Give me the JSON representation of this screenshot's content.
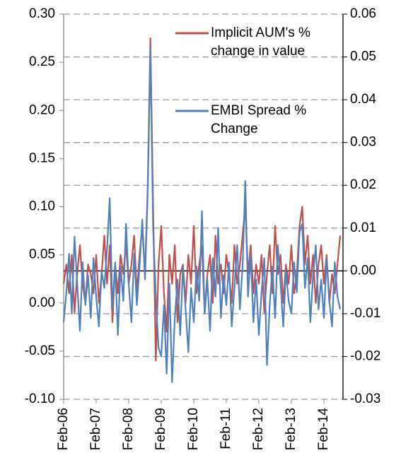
{
  "chart_data": {
    "type": "line",
    "categories": [
      "Feb-06",
      null,
      null,
      null,
      null,
      null,
      null,
      null,
      null,
      null,
      null,
      null,
      "Feb-07",
      null,
      null,
      null,
      null,
      null,
      null,
      null,
      null,
      null,
      null,
      null,
      "Feb-08",
      null,
      null,
      null,
      null,
      null,
      null,
      null,
      null,
      null,
      null,
      null,
      "Feb-09",
      null,
      null,
      null,
      null,
      null,
      null,
      null,
      null,
      null,
      null,
      null,
      "Feb-10",
      null,
      null,
      null,
      null,
      null,
      null,
      null,
      null,
      null,
      null,
      null,
      "Feb-11",
      null,
      null,
      null,
      null,
      null,
      null,
      null,
      null,
      null,
      null,
      null,
      "Feb-12",
      null,
      null,
      null,
      null,
      null,
      null,
      null,
      null,
      null,
      null,
      null,
      "Feb-13",
      null,
      null,
      null,
      null,
      null,
      null,
      null,
      null,
      null,
      null,
      null,
      "Feb-14",
      null,
      null,
      null,
      null,
      null,
      null
    ],
    "series": [
      {
        "name": "Implicit AUM's % change in value",
        "color": "#c0504d",
        "values": [
          0.02,
          0.04,
          0.01,
          0.05,
          -0.01,
          0.03,
          0.06,
          0.02,
          0.0,
          0.04,
          0.03,
          0.01,
          0.05,
          0.0,
          0.03,
          0.07,
          0.02,
          0.06,
          -0.02,
          0.04,
          0.01,
          0.05,
          0.03,
          0.06,
          0.02,
          0.04,
          0.07,
          0.01,
          0.05,
          0.08,
          0.03,
          0.12,
          0.275,
          0.1,
          -0.06,
          0.04,
          0.08,
          0.01,
          -0.03,
          0.05,
          0.02,
          0.06,
          -0.02,
          0.03,
          0.04,
          0.0,
          0.05,
          0.02,
          0.08,
          0.01,
          0.04,
          0.06,
          -0.01,
          0.03,
          0.05,
          0.0,
          0.07,
          0.02,
          0.04,
          0.01,
          0.05,
          0.03,
          0.0,
          0.06,
          0.02,
          0.04,
          0.07,
          0.1,
          0.03,
          0.06,
          0.01,
          0.04,
          0.02,
          0.05,
          -0.01,
          0.03,
          0.06,
          0.01,
          0.08,
          0.03,
          0.05,
          0.0,
          0.04,
          0.02,
          0.06,
          0.01,
          0.03,
          0.08,
          0.1,
          0.04,
          0.07,
          0.02,
          0.05,
          0.0,
          0.04,
          0.06,
          0.02,
          0.05,
          0.0,
          0.03,
          0.01,
          0.04,
          0.07
        ]
      },
      {
        "name": "EMBI Spread % Change",
        "color": "#4f81bd",
        "axis": "y2",
        "values": [
          -0.012,
          -0.005,
          0.004,
          -0.01,
          0.008,
          -0.003,
          -0.014,
          0.002,
          -0.008,
          -0.001,
          -0.011,
          0.003,
          -0.006,
          -0.013,
          0.0,
          -0.004,
          0.005,
          0.017,
          -0.009,
          0.002,
          -0.015,
          0.001,
          -0.007,
          0.011,
          -0.003,
          -0.012,
          0.004,
          -0.008,
          0.001,
          0.012,
          -0.002,
          0.018,
          0.052,
          0.01,
          -0.006,
          -0.018,
          -0.02,
          -0.008,
          -0.024,
          -0.003,
          -0.026,
          -0.011,
          -0.002,
          -0.015,
          0.001,
          -0.009,
          -0.019,
          -0.004,
          -0.012,
          0.001,
          -0.007,
          0.014,
          -0.01,
          -0.002,
          -0.014,
          0.003,
          -0.006,
          0.01,
          -0.011,
          -0.001,
          -0.008,
          0.002,
          -0.013,
          -0.004,
          0.006,
          -0.009,
          0.001,
          0.021,
          -0.006,
          0.004,
          -0.012,
          -0.002,
          -0.015,
          -0.005,
          0.003,
          -0.022,
          -0.008,
          0.001,
          -0.011,
          0.006,
          -0.003,
          -0.013,
          0.0,
          -0.007,
          -0.01,
          0.002,
          -0.005,
          0.009,
          0.011,
          -0.004,
          0.003,
          -0.012,
          -0.001,
          0.006,
          -0.009,
          -0.002,
          -0.011,
          0.003,
          -0.007,
          -0.013,
          0.002,
          -0.006,
          -0.009
        ]
      }
    ],
    "ylim": [
      -0.1,
      0.3
    ],
    "yticks": [
      {
        "value": 0.3,
        "label": "0.30"
      },
      0.25,
      {
        "value": 0.2,
        "label": "0.20"
      },
      0.15,
      {
        "value": 0.1,
        "label": "0.10"
      },
      0.05,
      {
        "value": 0,
        "label": "0.00"
      },
      -0.05,
      {
        "value": -0.1,
        "label": "-0.10"
      }
    ],
    "y2lim": [
      -0.03,
      0.06
    ],
    "y2ticks": [
      0.06,
      0.05,
      0.04,
      0.03,
      0.02,
      0.01,
      {
        "value": 0,
        "label": "0.00"
      },
      -0.01,
      -0.02,
      -0.03
    ],
    "grid": true,
    "legend": "top-right"
  }
}
